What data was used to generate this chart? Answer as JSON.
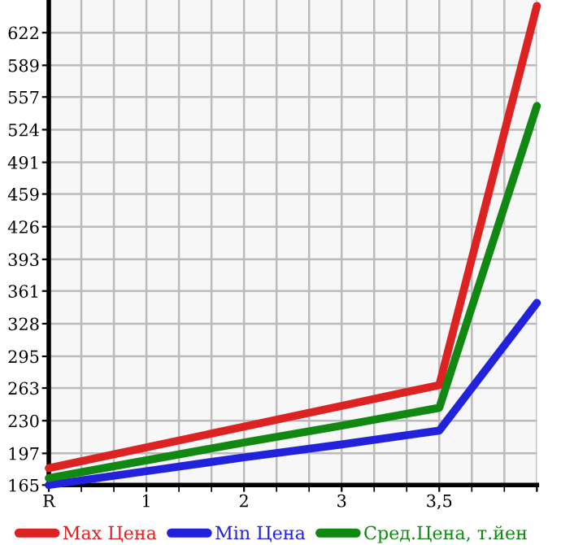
{
  "chart_data": {
    "type": "line",
    "categories": [
      "R",
      "1",
      "2",
      "3",
      "3,5",
      null
    ],
    "ylim": [
      165,
      655
    ],
    "yticks": [
      165,
      197,
      230,
      263,
      295,
      328,
      361,
      393,
      426,
      459,
      491,
      524,
      557,
      589,
      622
    ],
    "grid": true,
    "legend": "bottom",
    "marker": "none",
    "line_style": "solid",
    "series": [
      {
        "name": "Max Цена",
        "color": "#dd2222",
        "values": [
          182,
          203,
          224,
          245,
          266,
          649
        ]
      },
      {
        "name": "Min Цена",
        "color": "#2222dd",
        "values": [
          165,
          179,
          193,
          206,
          220,
          349
        ]
      },
      {
        "name": "Сред.Цена, т.йен",
        "color": "#118811",
        "values": [
          172,
          190,
          208,
          225,
          243,
          548
        ]
      }
    ]
  }
}
